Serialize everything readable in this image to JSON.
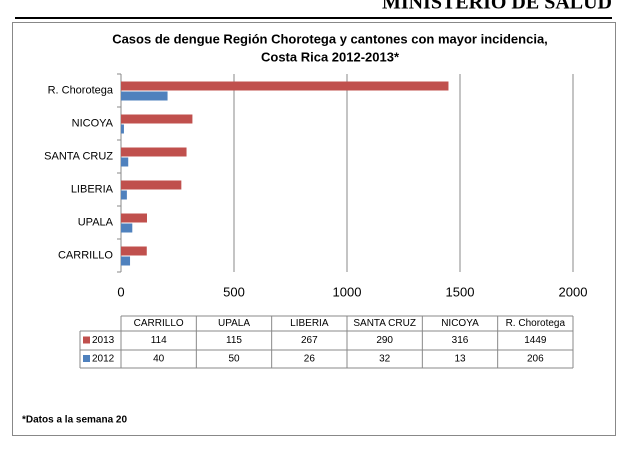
{
  "header": "MINISTERIO DE SALUD",
  "chart_data": {
    "type": "bar",
    "orientation": "horizontal",
    "title": [
      "Casos de dengue Región Chorotega y cantones con mayor incidencia,",
      "Costa Rica 2012-2013*"
    ],
    "categories": [
      "CARRILLO",
      "UPALA",
      "LIBERIA",
      "SANTA CRUZ",
      "NICOYA",
      "R. Chorotega"
    ],
    "series": [
      {
        "name": "2013",
        "color": "#c0504d",
        "values": [
          114,
          115,
          267,
          290,
          316,
          1449
        ]
      },
      {
        "name": "2012",
        "color": "#4f81bd",
        "values": [
          40,
          50,
          26,
          32,
          13,
          206
        ]
      }
    ],
    "xlim": [
      0,
      2000
    ],
    "xticks": [
      0,
      500,
      1000,
      1500,
      2000
    ],
    "grid": true,
    "data_table": true,
    "footnote": "*Datos a la semana 20"
  }
}
